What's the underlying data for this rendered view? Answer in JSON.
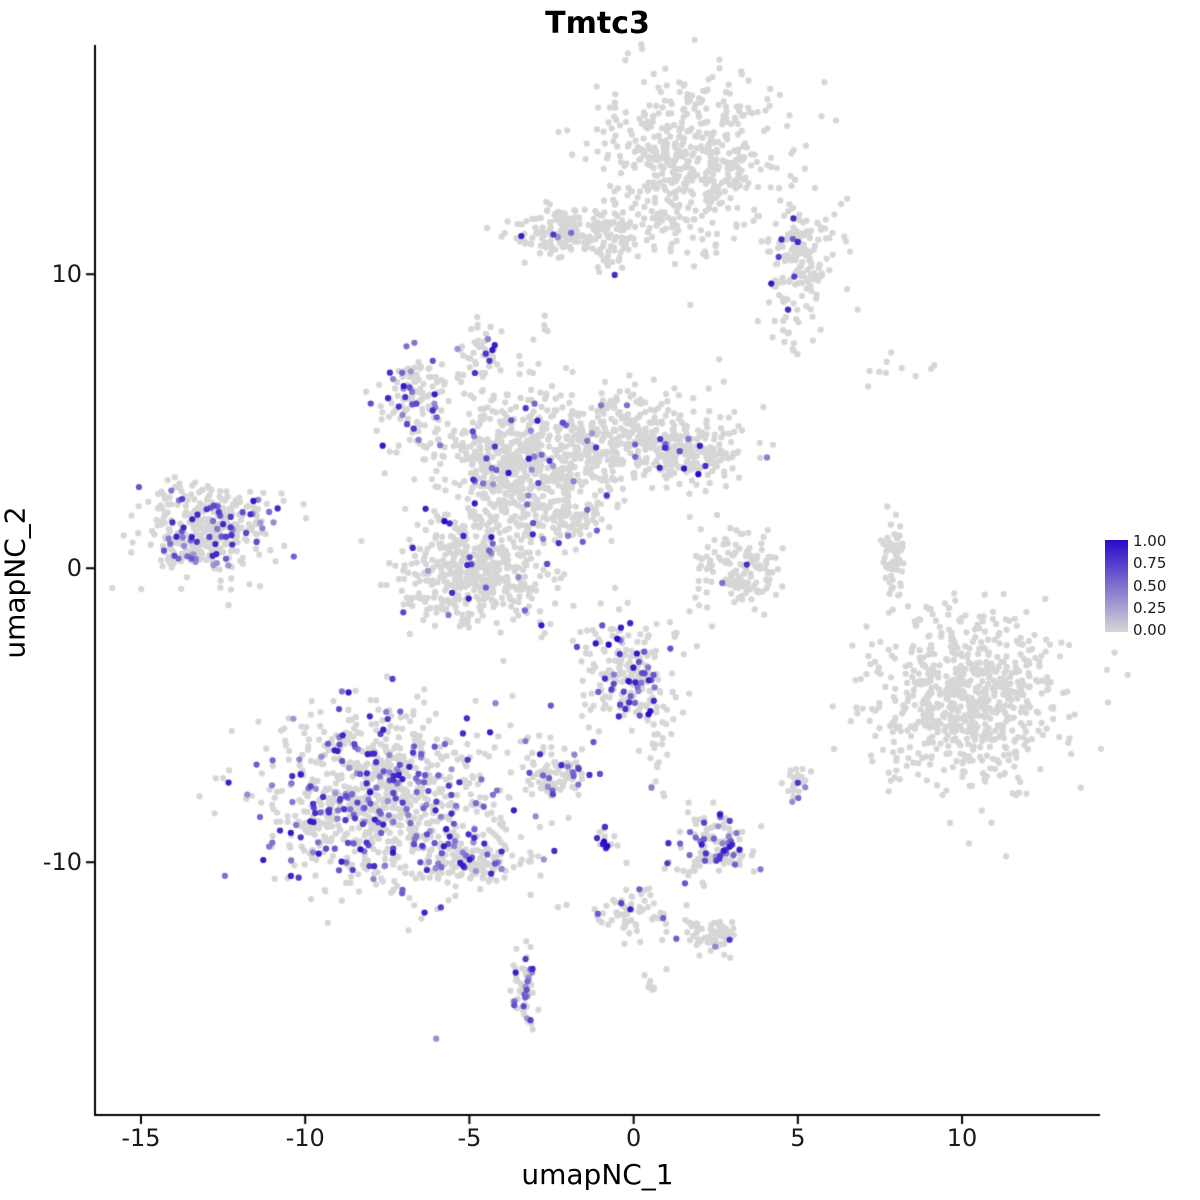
{
  "chart_data": {
    "type": "scatter",
    "title": "Tmtc3",
    "xlabel": "umapNC_1",
    "ylabel": "umapNC_2",
    "xlim": [
      -16.4,
      14.2
    ],
    "ylim": [
      -18.6,
      17.8
    ],
    "x_ticks": [
      -15,
      -10,
      -5,
      0,
      5,
      10
    ],
    "x_tick_labels": [
      "-15",
      "-10",
      "-5",
      "0",
      "5",
      "10"
    ],
    "y_ticks": [
      -10,
      0,
      10
    ],
    "y_tick_labels": [
      "-10",
      "0",
      "10"
    ],
    "grid": false,
    "panel_background": "#ffffff",
    "axis_color": "#000000",
    "point_radius": 3.1,
    "seed": 42,
    "legend": {
      "position": "right",
      "labels": [
        "1.00",
        "0.75",
        "0.50",
        "0.25",
        "0.00"
      ],
      "low_color": "#d6d6d6",
      "high_color": "#2a0ac8"
    },
    "clusters": [
      {
        "name": "top-main",
        "cx": 1.7,
        "cy": 13.7,
        "sx": 1.35,
        "sy": 1.5,
        "n": 550,
        "expr_frac": 0.004
      },
      {
        "name": "top-left-arm",
        "cx": -1.7,
        "cy": 11.4,
        "sx": 1.1,
        "sy": 0.45,
        "n": 220,
        "expr_frac": 0.01
      },
      {
        "name": "top-right-arm",
        "cx": 5.0,
        "cy": 10.3,
        "sx": 0.55,
        "sy": 1.2,
        "n": 170,
        "expr_frac": 0.02
      },
      {
        "name": "mid-core",
        "cx": -3.6,
        "cy": 3.4,
        "sx": 1.2,
        "sy": 1.2,
        "n": 600,
        "expr_frac": 0.05
      },
      {
        "name": "mid-right-lobe",
        "cx": -0.3,
        "cy": 4.4,
        "sx": 1.35,
        "sy": 0.85,
        "n": 350,
        "expr_frac": 0.04
      },
      {
        "name": "mid-right-arm",
        "cx": 1.8,
        "cy": 3.9,
        "sx": 0.9,
        "sy": 0.5,
        "n": 150,
        "expr_frac": 0.03
      },
      {
        "name": "mid-left-arm",
        "cx": -6.6,
        "cy": 5.5,
        "sx": 0.6,
        "sy": 0.9,
        "n": 130,
        "expr_frac": 0.18
      },
      {
        "name": "mid-top-spur",
        "cx": -4.5,
        "cy": 7.4,
        "sx": 0.25,
        "sy": 0.4,
        "n": 40,
        "expr_frac": 0.2
      },
      {
        "name": "mid-lower",
        "cx": -4.9,
        "cy": -0.2,
        "sx": 1.05,
        "sy": 0.85,
        "n": 450,
        "expr_frac": 0.05
      },
      {
        "name": "mid-trail",
        "cx": -2.0,
        "cy": 1.7,
        "sx": 0.6,
        "sy": 0.55,
        "n": 80,
        "expr_frac": 0.06
      },
      {
        "name": "left-island",
        "cx": -12.9,
        "cy": 1.3,
        "sx": 1.05,
        "sy": 0.75,
        "n": 380,
        "expr_frac": 0.13
      },
      {
        "name": "center-crescent",
        "cx": 3.2,
        "cy": 0.0,
        "sx": 0.75,
        "sy": 0.7,
        "n": 130,
        "expr_frac": 0.02
      },
      {
        "name": "right-thin-arc",
        "cx": 7.9,
        "cy": 0.2,
        "sx": 0.18,
        "sy": 0.7,
        "n": 60,
        "expr_frac": 0.0
      },
      {
        "name": "right-island",
        "cx": 10.2,
        "cy": -4.4,
        "sx": 1.35,
        "sy": 1.5,
        "n": 700,
        "expr_frac": 0.002
      },
      {
        "name": "right-sparse-top",
        "cx": 8.2,
        "cy": 6.8,
        "sx": 0.9,
        "sy": 0.3,
        "n": 10,
        "expr_frac": 0.0
      },
      {
        "name": "center-mid",
        "cx": -0.2,
        "cy": -3.6,
        "sx": 0.7,
        "sy": 0.95,
        "n": 200,
        "expr_frac": 0.15,
        "vmin": 0.4,
        "vmax": 1.0
      },
      {
        "name": "bottom-left-main",
        "cx": -7.7,
        "cy": -7.8,
        "sx": 1.65,
        "sy": 1.5,
        "n": 900,
        "expr_frac": 0.22
      },
      {
        "name": "bottom-left-tail",
        "cx": -5.0,
        "cy": -10.0,
        "sx": 0.8,
        "sy": 0.55,
        "n": 150,
        "expr_frac": 0.18
      },
      {
        "name": "small-left-center",
        "cx": -2.3,
        "cy": -7.0,
        "sx": 0.55,
        "sy": 0.5,
        "n": 90,
        "expr_frac": 0.18
      },
      {
        "name": "small-center-low",
        "cx": 2.4,
        "cy": -9.5,
        "sx": 0.6,
        "sy": 0.55,
        "n": 120,
        "expr_frac": 0.3
      },
      {
        "name": "tiny-right-pair",
        "cx": 5.0,
        "cy": -7.2,
        "sx": 0.22,
        "sy": 0.28,
        "n": 25,
        "expr_frac": 0.25
      },
      {
        "name": "tiny-dark-dots",
        "cx": -0.9,
        "cy": -9.35,
        "sx": 0.16,
        "sy": 0.2,
        "n": 12,
        "expr_frac": 0.4,
        "vmin": 0.8,
        "vmax": 1.0
      },
      {
        "name": "lower-trail",
        "cx": -0.1,
        "cy": -11.7,
        "sx": 0.55,
        "sy": 0.45,
        "n": 60,
        "expr_frac": 0.1
      },
      {
        "name": "center-connector",
        "cx": 0.8,
        "cy": -5.8,
        "sx": 0.3,
        "sy": 0.9,
        "n": 30,
        "expr_frac": 0.05
      },
      {
        "name": "bottom-small",
        "cx": 2.3,
        "cy": -12.5,
        "sx": 0.5,
        "sy": 0.3,
        "n": 70,
        "expr_frac": 0.04
      },
      {
        "name": "bottom-vertical",
        "cx": -3.3,
        "cy": -14.2,
        "sx": 0.2,
        "sy": 0.65,
        "n": 50,
        "expr_frac": 0.28
      },
      {
        "name": "bottom-singleton",
        "cx": -6.0,
        "cy": -16.1,
        "sx": 0.05,
        "sy": 0.05,
        "n": 1,
        "expr_frac": 1.0,
        "vmin": 0.35,
        "vmax": 0.35
      },
      {
        "name": "bottom-tiny",
        "cx": 0.6,
        "cy": -14.1,
        "sx": 0.15,
        "sy": 0.25,
        "n": 8,
        "expr_frac": 0.0
      },
      {
        "name": "upper-tiny-pair",
        "cx": -2.8,
        "cy": 8.3,
        "sx": 0.15,
        "sy": 0.25,
        "n": 5,
        "expr_frac": 0.0
      }
    ],
    "highlight_points": [
      {
        "x": -3.42,
        "y": 11.3,
        "v": 0.9
      },
      {
        "x": 4.85,
        "y": 11.2,
        "v": 0.6
      },
      {
        "x": 5.0,
        "y": 11.1,
        "v": 0.85
      },
      {
        "x": 4.7,
        "y": 8.8,
        "v": 0.85
      },
      {
        "x": -5.76,
        "y": 1.6,
        "v": 1.0
      },
      {
        "x": 1.97,
        "y": 3.2,
        "v": 1.0
      },
      {
        "x": -2.9,
        "y": 2.9,
        "v": 0.7
      },
      {
        "x": -4.4,
        "y": 0.6,
        "v": 0.55
      },
      {
        "x": -1.55,
        "y": 0.9,
        "v": 0.6
      },
      {
        "x": -7.0,
        "y": 6.2,
        "v": 0.95
      },
      {
        "x": -7.15,
        "y": 5.5,
        "v": 0.8
      },
      {
        "x": -6.9,
        "y": 4.9,
        "v": 0.7
      },
      {
        "x": -4.5,
        "y": 7.3,
        "v": 0.8
      },
      {
        "x": -0.76,
        "y": -2.6,
        "v": 1.0
      },
      {
        "x": -0.5,
        "y": -2.4,
        "v": 1.0
      },
      {
        "x": 0.1,
        "y": -2.9,
        "v": 0.95
      },
      {
        "x": -0.3,
        "y": -4.2,
        "v": 0.7
      },
      {
        "x": -0.9,
        "y": -9.3,
        "v": 1.0
      },
      {
        "x": -0.8,
        "y": -9.45,
        "v": 1.0
      },
      {
        "x": -0.1,
        "y": -11.6,
        "v": 0.9
      },
      {
        "x": 0.9,
        "y": -11.9,
        "v": 0.6
      },
      {
        "x": -2.2,
        "y": -6.7,
        "v": 0.85
      },
      {
        "x": 5.0,
        "y": -7.3,
        "v": 0.8
      },
      {
        "x": 2.7,
        "y": -0.5,
        "v": 0.5
      },
      {
        "x": -12.5,
        "y": 1.5,
        "v": 0.85
      },
      {
        "x": -13.3,
        "y": 0.9,
        "v": 0.8
      },
      {
        "x": -11.8,
        "y": 1.2,
        "v": 0.7
      },
      {
        "x": -14.3,
        "y": 0.6,
        "v": 0.65
      },
      {
        "x": 3.0,
        "y": -9.4,
        "v": 0.85
      },
      {
        "x": 2.2,
        "y": -9.7,
        "v": 0.8
      },
      {
        "x": -3.35,
        "y": -14.9,
        "v": 0.7
      },
      {
        "x": -3.3,
        "y": -14.6,
        "v": 0.6
      },
      {
        "x": 1.3,
        "y": -12.6,
        "v": 0.6
      }
    ]
  }
}
